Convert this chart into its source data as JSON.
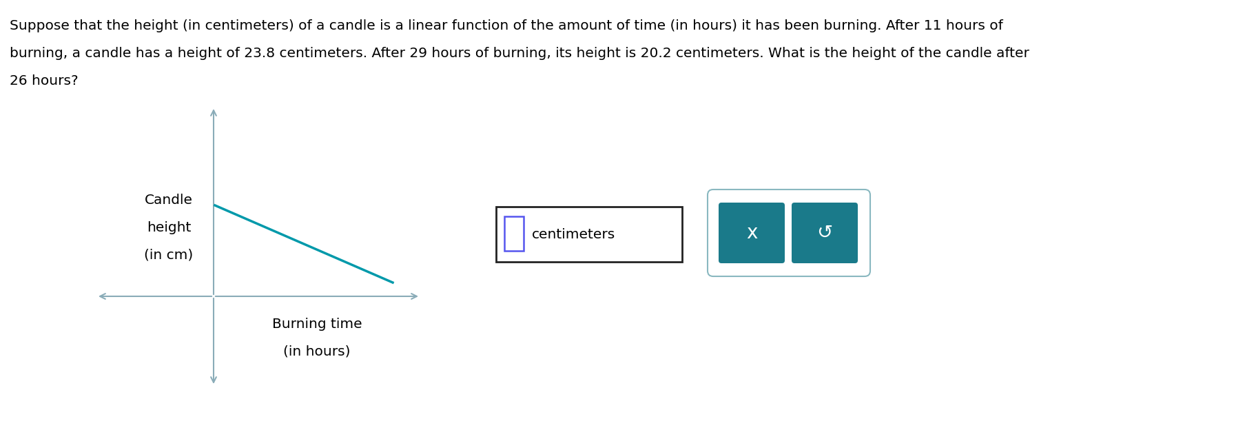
{
  "problem_text_line1": "Suppose that the height (in centimeters) of a candle is a linear function of the amount of time (in hours) it has been burning. After 11 hours of",
  "problem_text_line2": "burning, a candle has a height of 23.8 centimeters. After 29 hours of burning, its height is 20.2 centimeters. What is the height of the candle after",
  "problem_text_line3": "26 hours?",
  "axis_color": "#8aacb8",
  "line_color": "#0099aa",
  "text_color": "#000000",
  "ylabel_line1": "Candle",
  "ylabel_line2": "height",
  "ylabel_line3": "(in cm)",
  "xlabel_line1": "Burning time",
  "xlabel_line2": "(in hours)",
  "input_box_label": "centimeters",
  "button_x_label": "x",
  "button_undo_char": "↺",
  "button_color": "#1a7a8a",
  "button_text_color": "#ffffff",
  "input_border_color": "#5555ee",
  "outer_box_color": "#8ab8c0",
  "background_color": "#ffffff",
  "text_fontsize": 14.5,
  "label_fontsize": 14.5
}
